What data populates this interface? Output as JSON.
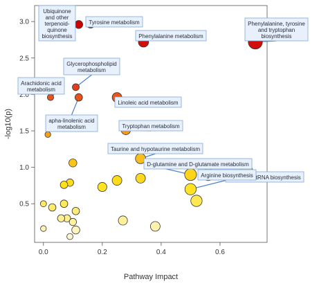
{
  "chart_data": {
    "type": "scatter",
    "xlabel": "Pathway Impact",
    "ylabel": "-log10(p)",
    "xlim": [
      -0.03,
      0.76
    ],
    "ylim": [
      -0.03,
      3.22
    ],
    "x_ticks": [
      0.0,
      0.2,
      0.4,
      0.6
    ],
    "x_tick_labels": [
      "0.0",
      "0.2",
      "0.4",
      "0.6"
    ],
    "y_ticks": [
      0.5,
      1.0,
      1.5,
      2.0,
      2.5,
      3.0
    ],
    "y_tick_labels": [
      "0.5",
      "1.0",
      "1.5",
      "2.0",
      "2.5",
      "3.0"
    ],
    "grid": false,
    "color_scale": [
      "#fff8e0",
      "#ffe21a",
      "#f59a1a",
      "#e0261a",
      "#c80000"
    ],
    "points": [
      {
        "x": 0.12,
        "y": 2.96,
        "size": 0.35
      },
      {
        "x": 0.16,
        "y": 2.97,
        "size": 0.4
      },
      {
        "x": 0.34,
        "y": 2.72,
        "size": 0.55
      },
      {
        "x": 0.72,
        "y": 2.72,
        "size": 0.9
      },
      {
        "x": 0.11,
        "y": 2.1,
        "size": 0.25
      },
      {
        "x": 0.024,
        "y": 1.96,
        "size": 0.2
      },
      {
        "x": 0.12,
        "y": 1.96,
        "size": 0.3
      },
      {
        "x": 0.25,
        "y": 1.96,
        "size": 0.5
      },
      {
        "x": 0.28,
        "y": 1.51,
        "size": 0.45
      },
      {
        "x": 0.015,
        "y": 1.45,
        "size": 0.15
      },
      {
        "x": 0.33,
        "y": 1.12,
        "size": 0.55
      },
      {
        "x": 0.1,
        "y": 1.06,
        "size": 0.35
      },
      {
        "x": 0.5,
        "y": 0.9,
        "size": 0.7
      },
      {
        "x": 0.56,
        "y": 0.9,
        "size": 0.7
      },
      {
        "x": 0.69,
        "y": 0.95,
        "size": 0.75
      },
      {
        "x": 0.25,
        "y": 0.82,
        "size": 0.5
      },
      {
        "x": 0.33,
        "y": 0.85,
        "size": 0.5
      },
      {
        "x": 0.5,
        "y": 0.7,
        "size": 0.65
      },
      {
        "x": 0.52,
        "y": 0.54,
        "size": 0.65
      },
      {
        "x": 0.2,
        "y": 0.73,
        "size": 0.45
      },
      {
        "x": 0.09,
        "y": 0.79,
        "size": 0.3
      },
      {
        "x": 0.07,
        "y": 0.76,
        "size": 0.3
      },
      {
        "x": 0.03,
        "y": 0.45,
        "size": 0.3
      },
      {
        "x": 0.07,
        "y": 0.5,
        "size": 0.3
      },
      {
        "x": 0.08,
        "y": 0.3,
        "size": 0.28
      },
      {
        "x": 0.11,
        "y": 0.4,
        "size": 0.3
      },
      {
        "x": 0.06,
        "y": 0.3,
        "size": 0.28
      },
      {
        "x": 0.1,
        "y": 0.25,
        "size": 0.28
      },
      {
        "x": 0.0,
        "y": 0.5,
        "size": 0.18
      },
      {
        "x": 0.0,
        "y": 0.16,
        "size": 0.15
      },
      {
        "x": 0.11,
        "y": 0.14,
        "size": 0.35
      },
      {
        "x": 0.09,
        "y": 0.05,
        "size": 0.18
      },
      {
        "x": 0.27,
        "y": 0.27,
        "size": 0.45
      },
      {
        "x": 0.38,
        "y": 0.19,
        "size": 0.5
      }
    ],
    "annotations": [
      {
        "label_lines": [
          "Ubiquinone",
          "and other",
          "terpenoid-",
          "quinone",
          "biosynthesis"
        ],
        "point": 0
      },
      {
        "label_lines": [
          "Tyrosine metabolism"
        ],
        "point": 1
      },
      {
        "label_lines": [
          "Phenylalanine metabolism"
        ],
        "point": 2
      },
      {
        "label_lines": [
          "Phenylalanine, tyrosine",
          "and tryptophan",
          "biosynthesis"
        ],
        "point": 3
      },
      {
        "label_lines": [
          "Glycerophospholipid",
          "metabolism"
        ],
        "point": 4
      },
      {
        "label_lines": [
          "Arachidonic acid",
          "metabolism"
        ],
        "point": 5
      },
      {
        "label_lines": [
          "apha-linolenic acid",
          "metabolism"
        ],
        "point": 6
      },
      {
        "label_lines": [
          "Linoleic acid metabolism"
        ],
        "point": 7
      },
      {
        "label_lines": [
          "Tryptophan metabolism"
        ],
        "point": 8
      },
      {
        "label_lines": [
          "Taurine and hypotaurine metabolism"
        ],
        "point": 10
      },
      {
        "label_lines": [
          "D-glutamine and D-glutamate metabolism"
        ],
        "point": 12
      },
      {
        "label_lines": [
          "Aminoacyl-tRNA biosynthesis"
        ],
        "point": 14
      },
      {
        "label_lines": [
          "Arginine biosynthesis"
        ],
        "point": 17
      }
    ]
  }
}
